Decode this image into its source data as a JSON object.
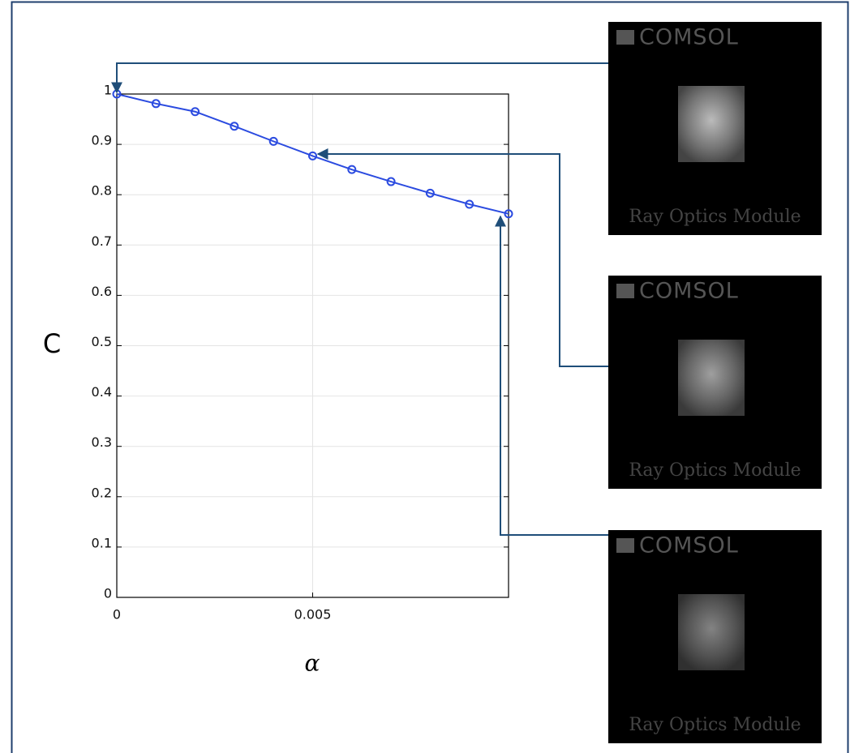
{
  "chart_data": {
    "type": "line",
    "x": [
      0,
      0.001,
      0.002,
      0.003,
      0.004,
      0.005,
      0.006,
      0.007,
      0.008,
      0.009,
      0.01
    ],
    "values": [
      1,
      0.981,
      0.965,
      0.936,
      0.906,
      0.877,
      0.85,
      0.826,
      0.803,
      0.781,
      0.762
    ],
    "color": "#2b4be0",
    "xlim": [
      0,
      0.01
    ],
    "xticks": [
      0,
      0.005
    ],
    "ylim": [
      0,
      1
    ],
    "yticks": [
      0,
      0.1,
      0.2,
      0.3,
      0.4,
      0.5,
      0.6,
      0.7,
      0.8,
      0.9,
      1
    ],
    "xlabel": "α",
    "ylabel": "C",
    "grid": true
  },
  "panels": [
    {
      "logo": "COMSOL",
      "caption": "Ray Optics Module"
    },
    {
      "logo": "COMSOL",
      "caption": "Ray Optics Module"
    },
    {
      "logo": "COMSOL",
      "caption": "Ray Optics Module"
    }
  ]
}
